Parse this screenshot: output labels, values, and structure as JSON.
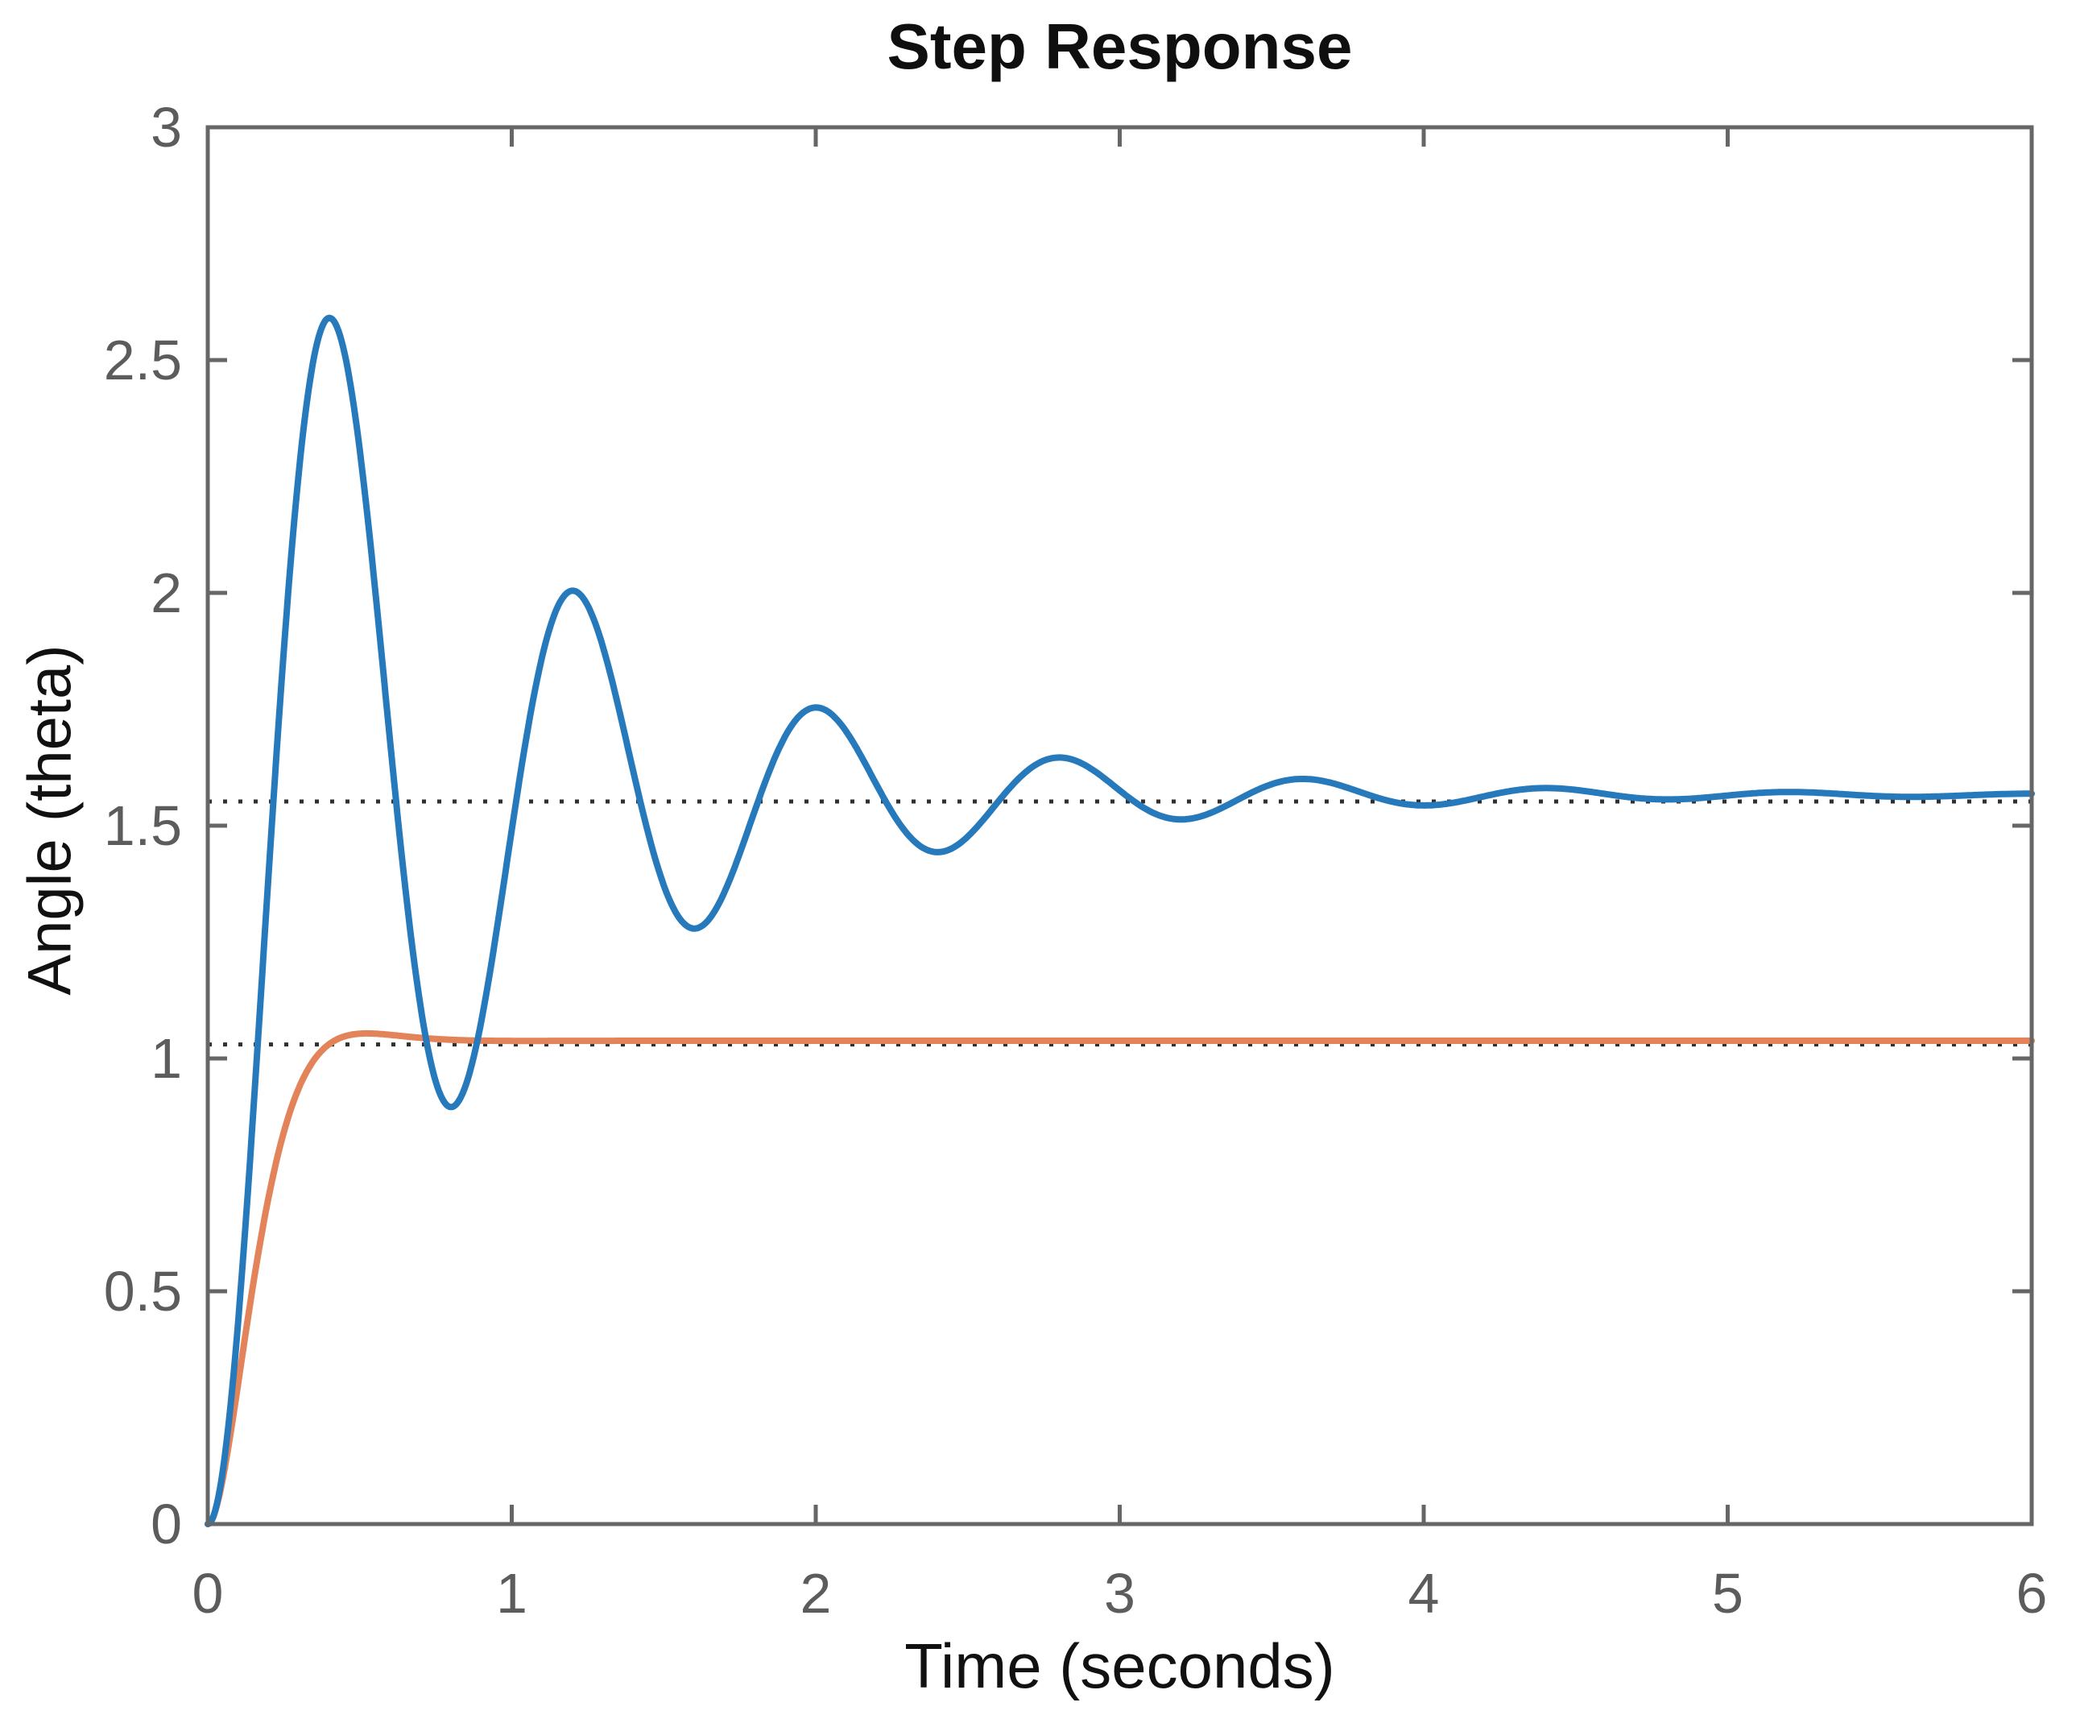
{
  "figure": {
    "background_color": "#ffffff"
  },
  "chart_data": {
    "type": "line",
    "title": "Step Response",
    "xlabel": "Time (seconds)",
    "ylabel": "Angle (theta)",
    "xlim": [
      0,
      6
    ],
    "ylim": [
      0,
      3
    ],
    "x_ticks": [
      0,
      1,
      2,
      3,
      4,
      5,
      6
    ],
    "x_tick_labels": [
      "0",
      "1",
      "2",
      "3",
      "4",
      "5",
      "6"
    ],
    "y_ticks": [
      0,
      0.5,
      1,
      1.5,
      2,
      2.5,
      3
    ],
    "y_tick_labels": [
      "0",
      "0.5",
      "1",
      "1.5",
      "2",
      "2.5",
      "3"
    ],
    "grid": false,
    "legend": null,
    "box": true,
    "tick_direction": "in",
    "axis_color": "#666666",
    "tick_label_color": "#5c5c5c",
    "title_color": "#0f0f0f",
    "axis_label_color": "#111111",
    "reference_lines": [
      {
        "id": "ref-upper",
        "y": 1.552,
        "style": "dotted",
        "color": "#303030"
      },
      {
        "id": "ref-lower",
        "y": 1.03,
        "style": "dotted",
        "color": "#303030"
      }
    ],
    "series": [
      {
        "id": "series-orange",
        "color": "#E2835A",
        "line_width": 8,
        "model": {
          "type": "second_order_step",
          "gain": 1.038,
          "sigma": 8.0,
          "omega_d": 6.0
        },
        "steady_state": 1.04,
        "overshoot_peak": {
          "t": 0.52,
          "y": 1.05
        }
      },
      {
        "id": "series-blue",
        "color": "#2679BB",
        "line_width": 8,
        "model": {
          "type": "second_order_step",
          "gain": 1.566,
          "sigma": 1.06,
          "omega_d": 7.85
        },
        "steady_state": 1.57,
        "overshoot_peak": {
          "t": 0.4,
          "y": 2.6
        },
        "extrema": [
          {
            "t": 0.4,
            "y": 2.59
          },
          {
            "t": 0.8,
            "y": 0.89
          },
          {
            "t": 1.2,
            "y": 2.01
          },
          {
            "t": 1.6,
            "y": 1.28
          },
          {
            "t": 2.0,
            "y": 1.76
          },
          {
            "t": 2.4,
            "y": 1.44
          },
          {
            "t": 2.8,
            "y": 1.65
          },
          {
            "t": 3.2,
            "y": 1.51
          },
          {
            "t": 3.6,
            "y": 1.6
          },
          {
            "t": 4.0,
            "y": 1.54
          },
          {
            "t": 4.4,
            "y": 1.58
          }
        ]
      }
    ]
  }
}
